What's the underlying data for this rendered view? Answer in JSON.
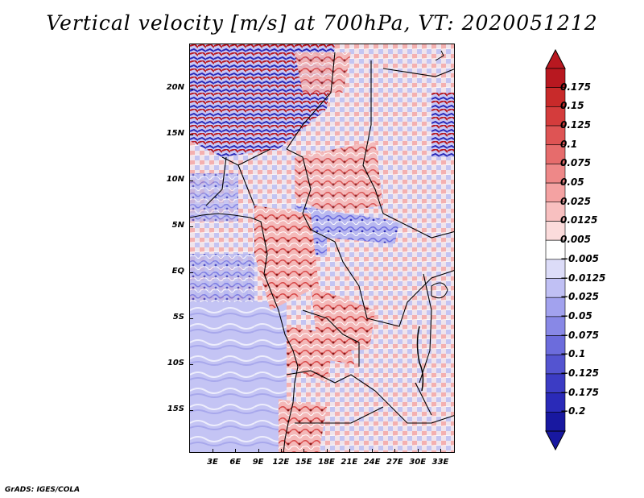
{
  "title": "Vertical velocity [m/s] at 700hPa, VT: 2020051212",
  "footer": "GrADS: IGES/COLA",
  "map": {
    "variable": "Vertical velocity",
    "units": "m/s",
    "level": "700hPa",
    "valid_time": "2020051212",
    "lat_labels": [
      "20N",
      "15N",
      "10N",
      "5N",
      "EQ",
      "5S",
      "10S",
      "15S"
    ],
    "lon_labels": [
      "3E",
      "6E",
      "9E",
      "12E",
      "15E",
      "18E",
      "21E",
      "24E",
      "27E",
      "30E",
      "33E"
    ],
    "lat_range": [
      -19.5,
      24
    ],
    "lon_range": [
      0.5,
      35
    ]
  },
  "colorbar": {
    "labels": [
      "0.175",
      "0.15",
      "0.125",
      "0.1",
      "0.075",
      "0.05",
      "0.025",
      "0.0125",
      "0.005",
      "−0.005",
      "−0.0125",
      "−0.025",
      "−0.05",
      "−0.075",
      "−0.1",
      "−0.125",
      "−0.175",
      "−0.2"
    ],
    "colors": [
      "#b81820",
      "#c82a2a",
      "#d43c3c",
      "#de5454",
      "#e66c6c",
      "#ee8888",
      "#f4a2a2",
      "#f8c0c0",
      "#fbdcdc",
      "#ffffff",
      "#dcdcf8",
      "#c0c0f4",
      "#a2a2ee",
      "#8888e6",
      "#6c6cdc",
      "#5454d0",
      "#3c3cc4",
      "#2a2ab8",
      "#1818a0"
    ]
  }
}
